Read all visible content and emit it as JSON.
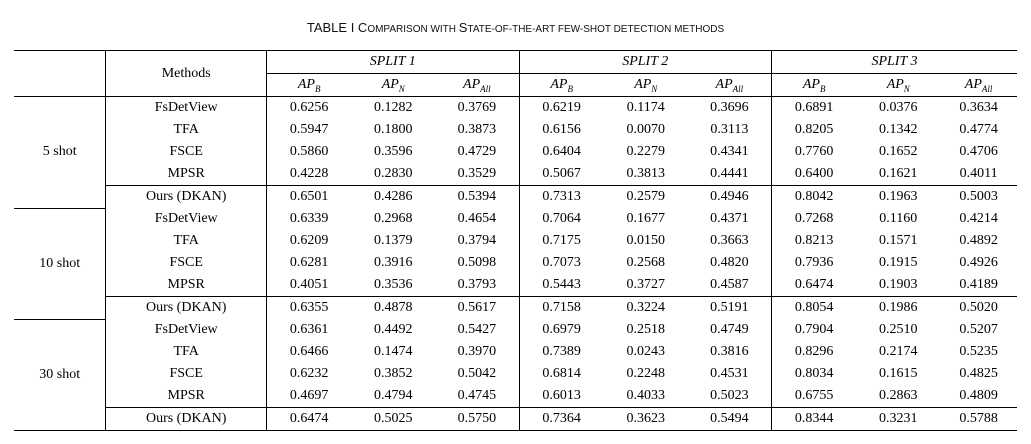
{
  "caption": {
    "prefix": "TABLE I ",
    "c1": "C",
    "s1": "OMPARISON WITH ",
    "c2": "S",
    "s2": "TATE-OF-THE-ART FEW-SHOT DETECTION METHODS"
  },
  "header": {
    "methods": "Methods",
    "splits": [
      "SPLIT 1",
      "SPLIT 2",
      "SPLIT 3"
    ],
    "metrics": [
      {
        "base": "AP",
        "sub": "B"
      },
      {
        "base": "AP",
        "sub": "N"
      },
      {
        "base": "AP",
        "sub": "All"
      }
    ]
  },
  "groups": [
    {
      "label": "5 shot",
      "rows": [
        {
          "method": "FsDetView",
          "values": [
            "0.6256",
            "0.1282",
            "0.3769",
            "0.6219",
            "0.1174",
            "0.3696",
            "0.6891",
            "0.0376",
            "0.3634"
          ],
          "bold": []
        },
        {
          "method": "TFA",
          "values": [
            "0.5947",
            "0.1800",
            "0.3873",
            "0.6156",
            "0.0070",
            "0.3113",
            "0.8205",
            "0.1342",
            "0.4774"
          ],
          "bold": [
            6
          ]
        },
        {
          "method": "FSCE",
          "values": [
            "0.5860",
            "0.3596",
            "0.4729",
            "0.6404",
            "0.2279",
            "0.4341",
            "0.7760",
            "0.1652",
            "0.4706"
          ],
          "bold": []
        },
        {
          "method": "MPSR",
          "values": [
            "0.4228",
            "0.2830",
            "0.3529",
            "0.5067",
            "0.3813",
            "0.4441",
            "0.6400",
            "0.1621",
            "0.4011"
          ],
          "bold": [
            4
          ]
        },
        {
          "method": "Ours (DKAN)",
          "values": [
            "0.6501",
            "0.4286",
            "0.5394",
            "0.7313",
            "0.2579",
            "0.4946",
            "0.8042",
            "0.1963",
            "0.5003"
          ],
          "bold": [
            0,
            1,
            2,
            3,
            5,
            7,
            8
          ],
          "ours": true
        }
      ]
    },
    {
      "label": "10 shot",
      "rows": [
        {
          "method": "FsDetView",
          "values": [
            "0.6339",
            "0.2968",
            "0.4654",
            "0.7064",
            "0.1677",
            "0.4371",
            "0.7268",
            "0.1160",
            "0.4214"
          ],
          "bold": []
        },
        {
          "method": "TFA",
          "values": [
            "0.6209",
            "0.1379",
            "0.3794",
            "0.7175",
            "0.0150",
            "0.3663",
            "0.8213",
            "0.1571",
            "0.4892"
          ],
          "bold": [
            3,
            6
          ]
        },
        {
          "method": "FSCE",
          "values": [
            "0.6281",
            "0.3916",
            "0.5098",
            "0.7073",
            "0.2568",
            "0.4820",
            "0.7936",
            "0.1915",
            "0.4926"
          ],
          "bold": []
        },
        {
          "method": "MPSR",
          "values": [
            "0.4051",
            "0.3536",
            "0.3793",
            "0.5443",
            "0.3727",
            "0.4587",
            "0.6474",
            "0.1903",
            "0.4189"
          ],
          "bold": [
            4
          ]
        },
        {
          "method": "Ours (DKAN)",
          "values": [
            "0.6355",
            "0.4878",
            "0.5617",
            "0.7158",
            "0.3224",
            "0.5191",
            "0.8054",
            "0.1986",
            "0.5020"
          ],
          "bold": [
            0,
            1,
            2,
            5,
            7,
            8
          ],
          "ours": true
        }
      ]
    },
    {
      "label": "30 shot",
      "rows": [
        {
          "method": "FsDetView",
          "values": [
            "0.6361",
            "0.4492",
            "0.5427",
            "0.6979",
            "0.2518",
            "0.4749",
            "0.7904",
            "0.2510",
            "0.5207"
          ],
          "bold": []
        },
        {
          "method": "TFA",
          "values": [
            "0.6466",
            "0.1474",
            "0.3970",
            "0.7389",
            "0.0243",
            "0.3816",
            "0.8296",
            "0.2174",
            "0.5235"
          ],
          "bold": [
            3
          ]
        },
        {
          "method": "FSCE",
          "values": [
            "0.6232",
            "0.3852",
            "0.5042",
            "0.6814",
            "0.2248",
            "0.4531",
            "0.8034",
            "0.1615",
            "0.4825"
          ],
          "bold": []
        },
        {
          "method": "MPSR",
          "values": [
            "0.4697",
            "0.4794",
            "0.4745",
            "0.6013",
            "0.4033",
            "0.5023",
            "0.6755",
            "0.2863",
            "0.4809"
          ],
          "bold": [
            4
          ]
        },
        {
          "method": "Ours (DKAN)",
          "values": [
            "0.6474",
            "0.5025",
            "0.5750",
            "0.7364",
            "0.3623",
            "0.5494",
            "0.8344",
            "0.3231",
            "0.5788"
          ],
          "bold": [
            0,
            1,
            2,
            5,
            6,
            7,
            8
          ],
          "ours": true
        }
      ]
    }
  ]
}
